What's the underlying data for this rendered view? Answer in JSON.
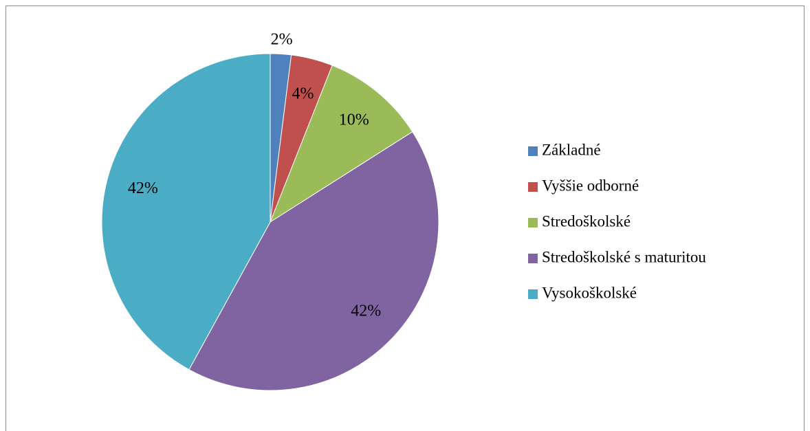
{
  "chart_data": {
    "type": "pie",
    "categories": [
      "Základné",
      "Vyššie odborné",
      "Stredoškolské",
      "Stredoškolské s maturitou",
      "Vysokoškolské"
    ],
    "values": [
      2,
      4,
      10,
      42,
      42
    ],
    "value_labels": [
      "2%",
      "4%",
      "10%",
      "42%",
      "42%"
    ],
    "colors": [
      "#4f81bd",
      "#c0504d",
      "#9bbb59",
      "#8064a2",
      "#4bacc6"
    ],
    "legend": "right"
  }
}
